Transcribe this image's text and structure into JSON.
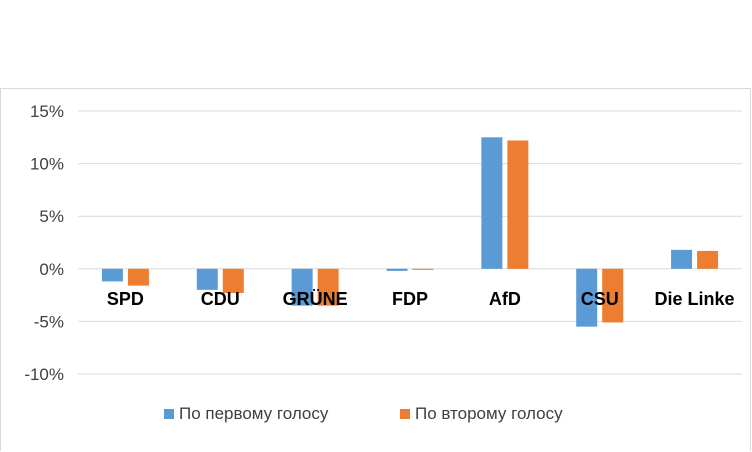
{
  "chart_data": {
    "type": "bar",
    "title": "",
    "xlabel": "",
    "ylabel": "",
    "categories": [
      "SPD",
      "CDU",
      "GRÜNE",
      "FDP",
      "AfD",
      "CSU",
      "Die Linke"
    ],
    "series": [
      {
        "name": "По первому голосу",
        "color": "#5b9bd5",
        "values": [
          -1.2,
          -2.0,
          -3.5,
          -0.2,
          12.5,
          -5.5,
          1.8
        ]
      },
      {
        "name": "По второму голосу",
        "color": "#ed7d31",
        "values": [
          -1.6,
          -2.3,
          -3.5,
          -0.1,
          12.2,
          -5.1,
          1.7
        ]
      }
    ],
    "ylim": [
      -10,
      15
    ],
    "yticks": [
      -10,
      -5,
      0,
      5,
      10,
      15
    ],
    "ytick_labels": [
      "-10%",
      "-5%",
      "0%",
      "5%",
      "10%",
      "15%"
    ],
    "grid": true,
    "legend_position": "bottom"
  }
}
